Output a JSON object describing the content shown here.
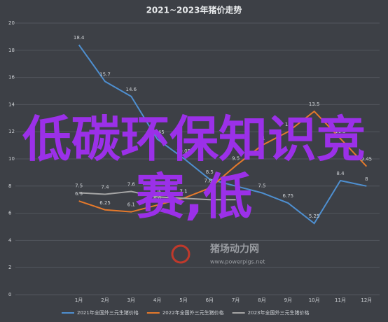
{
  "chart_data": {
    "type": "line",
    "title": "2021~2023年猪价走势",
    "categories": [
      "1月",
      "2月",
      "3月",
      "4月",
      "5月",
      "6月",
      "7月",
      "8月",
      "9月",
      "10月",
      "11月",
      "12月"
    ],
    "series": [
      {
        "name": "2021年全国外三元生猪价格",
        "color": "#4e8fd0",
        "values": [
          18.4,
          15.7,
          14.6,
          11.45,
          10.05,
          8.5,
          8,
          7.5,
          6.75,
          5.25,
          8.4,
          8
        ]
      },
      {
        "name": "2022年全国外三元生猪价格",
        "color": "#e5792b",
        "values": [
          6.9,
          6.25,
          6.1,
          6.6,
          7.1,
          7.85,
          9.5,
          11,
          12,
          13.5,
          11.5,
          9.45
        ]
      },
      {
        "name": "2023年全国外三元生猪价格",
        "color": "#a5a5a5",
        "values": [
          7.5,
          7.4,
          7.6,
          7.2,
          7.1,
          7,
          7,
          null,
          null,
          null,
          null,
          null
        ]
      }
    ],
    "ylim": [
      0,
      20
    ],
    "yticks": [
      0,
      2,
      4,
      6,
      8,
      10,
      12,
      14,
      16,
      18,
      20
    ],
    "grid": true,
    "overlay_text": "低碳环保知识竞赛,低",
    "watermark": "猪场动力网",
    "watermark_url": "www.powerpigs.net"
  }
}
